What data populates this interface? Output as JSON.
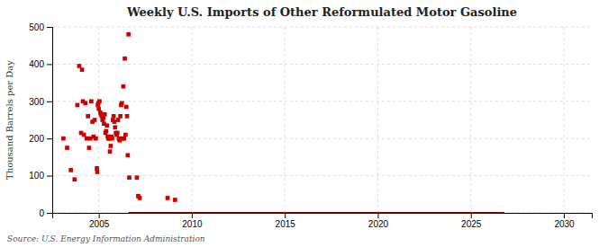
{
  "chart_data": {
    "type": "scatter",
    "title": "Weekly U.S. Imports of Other Reformulated Motor Gasoline",
    "ylabel": "Thousand Barrels per Day",
    "source": "Source: U.S. Energy Information Administration",
    "xlim": [
      2002.5,
      2031.5
    ],
    "xticks": [
      2005,
      2010,
      2015,
      2020,
      2025,
      2030
    ],
    "ylim": [
      0,
      500
    ],
    "yticks": [
      0,
      100,
      200,
      300,
      400,
      500
    ],
    "grid": true,
    "series": [
      {
        "type": "scatter",
        "color": "#cc0000",
        "marker": "square",
        "x": [
          2003.1,
          2003.3,
          2003.5,
          2003.7,
          2003.85,
          2003.95,
          2004.05,
          2004.1,
          2004.15,
          2004.2,
          2004.28,
          2004.35,
          2004.42,
          2004.48,
          2004.55,
          2004.6,
          2004.66,
          2004.72,
          2004.78,
          2004.84,
          2004.9,
          2004.92,
          2004.95,
          2004.98,
          2005.0,
          2005.04,
          2005.08,
          2005.12,
          2005.16,
          2005.2,
          2005.24,
          2005.28,
          2005.32,
          2005.36,
          2005.4,
          2005.44,
          2005.48,
          2005.52,
          2005.56,
          2005.6,
          2005.64,
          2005.68,
          2005.72,
          2005.76,
          2005.8,
          2005.84,
          2005.88,
          2005.92,
          2005.96,
          2006.0,
          2006.04,
          2006.08,
          2006.12,
          2006.16,
          2006.2,
          2006.24,
          2006.28,
          2006.32,
          2006.36,
          2006.4,
          2006.44,
          2006.48,
          2006.52,
          2006.56,
          2006.6,
          2006.64,
          2007.05,
          2007.12,
          2007.2,
          2008.7,
          2009.1
        ],
        "values": [
          200,
          175,
          115,
          90,
          290,
          395,
          215,
          385,
          300,
          210,
          295,
          200,
          260,
          175,
          200,
          300,
          245,
          205,
          250,
          200,
          120,
          110,
          290,
          295,
          280,
          300,
          270,
          265,
          260,
          250,
          255,
          240,
          265,
          215,
          220,
          235,
          205,
          200,
          200,
          165,
          180,
          205,
          200,
          250,
          260,
          245,
          230,
          215,
          210,
          215,
          250,
          200,
          195,
          260,
          290,
          295,
          200,
          340,
          200,
          415,
          210,
          285,
          260,
          155,
          480,
          95,
          95,
          45,
          40,
          40,
          35
        ]
      },
      {
        "type": "line",
        "color": "#8b0000",
        "line_style": "solid",
        "x": [
          2006.6,
          2026.8
        ],
        "values": [
          0,
          0
        ]
      }
    ]
  }
}
